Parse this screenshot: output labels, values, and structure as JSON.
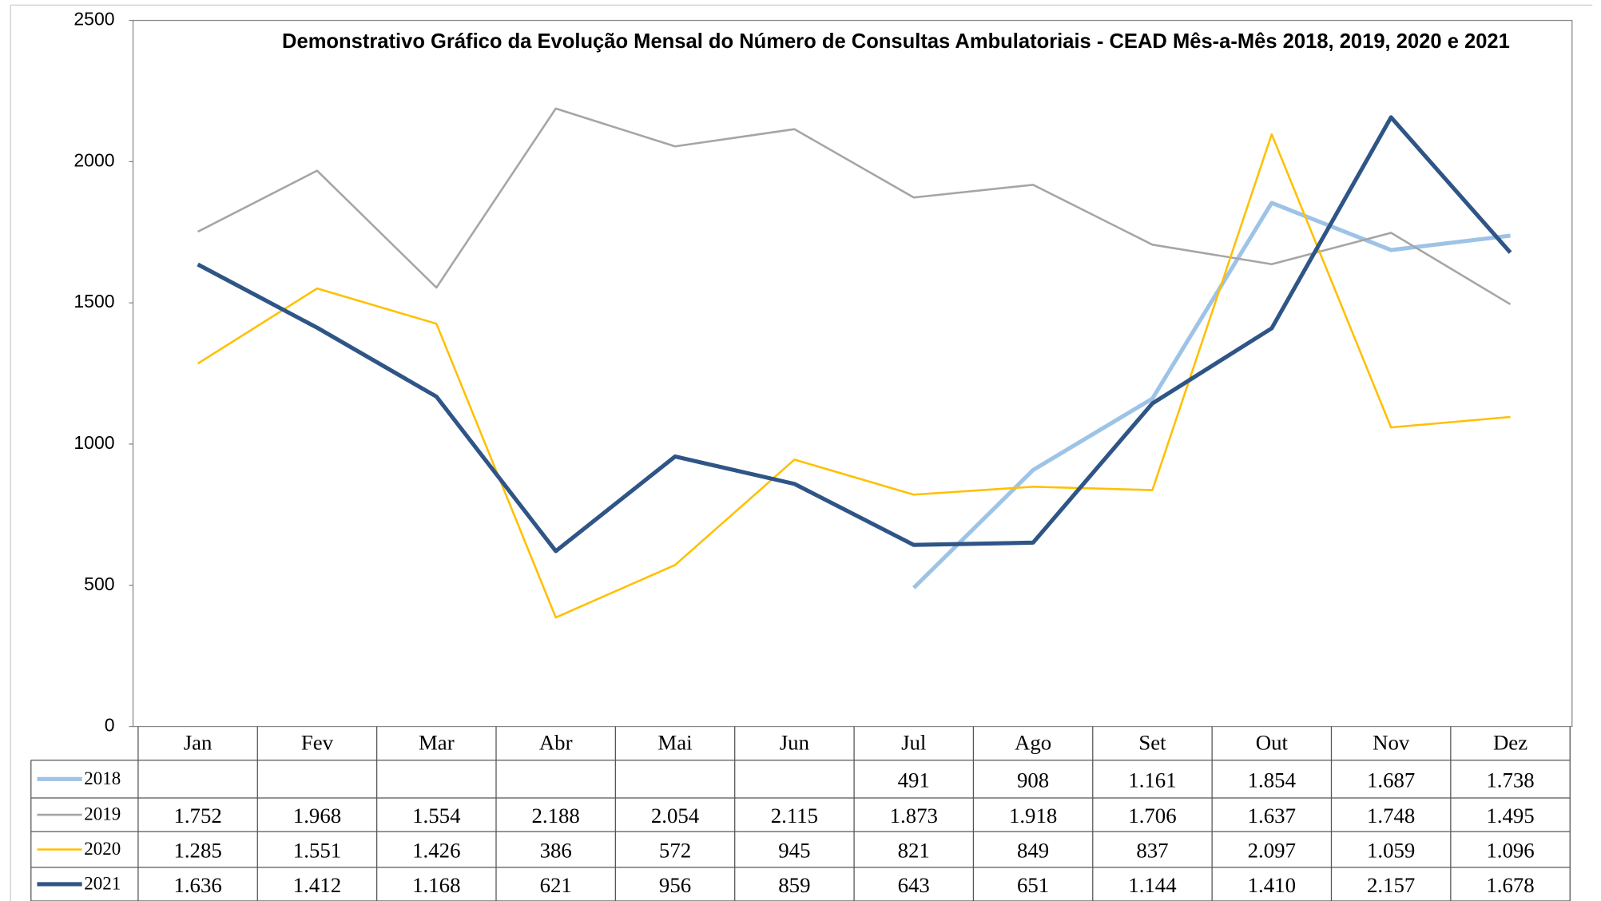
{
  "chart_data": {
    "type": "line",
    "title": "Demonstrativo Gráfico da Evolução Mensal do Número de Consultas Ambulatoriais - CEAD Mês-a-Mês 2018, 2019, 2020 e 2021",
    "categories": [
      "Jan",
      "Fev",
      "Mar",
      "Abr",
      "Mai",
      "Jun",
      "Jul",
      "Ago",
      "Set",
      "Out",
      "Nov",
      "Dez"
    ],
    "ylim": [
      0,
      2500
    ],
    "yticks": [
      0,
      500,
      1000,
      1500,
      2000,
      2500
    ],
    "grid": false,
    "series": [
      {
        "name": "2018",
        "color": "#9dc3e6",
        "values": [
          null,
          null,
          null,
          null,
          null,
          null,
          491,
          908,
          1161,
          1854,
          1687,
          1738
        ],
        "value_labels": [
          null,
          null,
          null,
          null,
          null,
          null,
          "491",
          "908",
          "1.161",
          "1.854",
          "1.687",
          "1.738"
        ]
      },
      {
        "name": "2019",
        "color": "#a5a5a5",
        "values": [
          1752,
          1968,
          1554,
          2188,
          2054,
          2115,
          1873,
          1918,
          1706,
          1637,
          1748,
          1495
        ],
        "value_labels": [
          "1.752",
          "1.968",
          "1.554",
          "2.188",
          "2.054",
          "2.115",
          "1.873",
          "1.918",
          "1.706",
          "1.637",
          "1.748",
          "1.495"
        ]
      },
      {
        "name": "2020",
        "color": "#ffc000",
        "values": [
          1285,
          1551,
          1426,
          386,
          572,
          945,
          821,
          849,
          837,
          2097,
          1059,
          1096
        ],
        "value_labels": [
          "1.285",
          "1.551",
          "1.426",
          "386",
          "572",
          "945",
          "821",
          "849",
          "837",
          "2.097",
          "1.059",
          "1.096"
        ]
      },
      {
        "name": "2021",
        "color": "#2f5587",
        "values": [
          1636,
          1412,
          1168,
          621,
          956,
          859,
          643,
          651,
          1144,
          1410,
          2157,
          1678
        ],
        "value_labels": [
          "1.636",
          "1.412",
          "1.168",
          "621",
          "956",
          "859",
          "643",
          "651",
          "1.144",
          "1.410",
          "2.157",
          "1.678"
        ]
      }
    ]
  }
}
